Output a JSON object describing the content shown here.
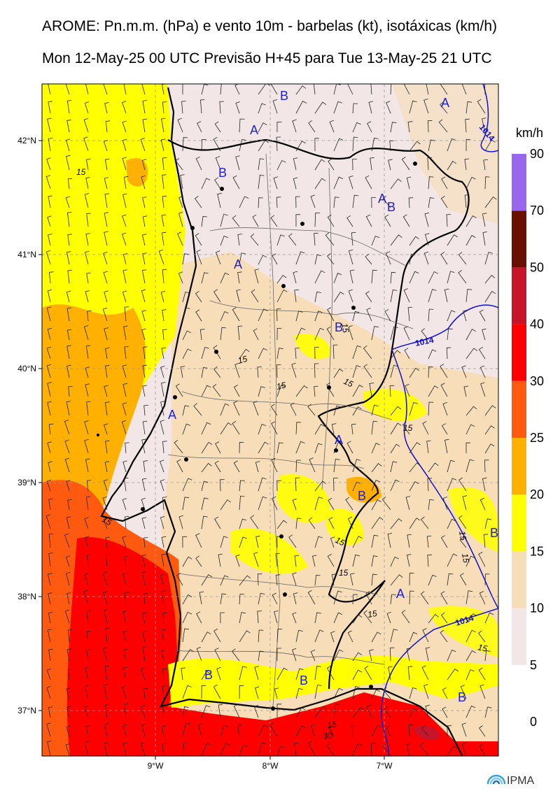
{
  "title_line1": "AROME: Pn.m.m. (hPa) e vento 10m - barbelas (kt), isotáxicas (km/h)",
  "title_line2": "Mon 12-May-25 00 UTC Previsão H+45 para Tue 13-May-25 21 UTC",
  "lat_labels": [
    "42°N",
    "41°N",
    "40°N",
    "39°N",
    "38°N",
    "37°N"
  ],
  "lon_labels": [
    "9°W",
    "8°W",
    "7°W"
  ],
  "colorbar": {
    "unit": "km/h",
    "levels": [
      "0",
      "5",
      "10",
      "15",
      "20",
      "25",
      "30",
      "40",
      "50",
      "70",
      "90"
    ],
    "colors": [
      "#ffffff",
      "#f3e6e6",
      "#f7ddb8",
      "#ffff00",
      "#ffb000",
      "#ff5a10",
      "#ff0000",
      "#c81428",
      "#6a1000",
      "#9966ee"
    ]
  },
  "pressure_centers": [
    {
      "label": "B",
      "name": "low-label-north"
    },
    {
      "label": "A",
      "name": "high-label-northeast"
    },
    {
      "label": "A",
      "name": "high-label-minho"
    },
    {
      "label": "B",
      "name": "low-label-minho"
    },
    {
      "label": "A",
      "name": "high-label-tras-os-montes"
    },
    {
      "label": "B",
      "name": "low-label-tras-os-montes"
    },
    {
      "label": "A",
      "name": "high-label-beira"
    },
    {
      "label": "B",
      "name": "low-label-beira-interior"
    },
    {
      "label": "A",
      "name": "high-label-west-coast"
    },
    {
      "label": "A",
      "name": "high-label-alto-alentejo"
    },
    {
      "label": "B",
      "name": "low-label-elvas"
    },
    {
      "label": "B",
      "name": "low-label-spain-east"
    },
    {
      "label": "A",
      "name": "high-label-baixo-alentejo"
    },
    {
      "label": "B",
      "name": "low-label-algarve-west"
    },
    {
      "label": "B",
      "name": "low-label-algarve-central"
    },
    {
      "label": "B",
      "name": "low-label-spain-south"
    }
  ],
  "isobar_labels": [
    "1014",
    "1014",
    "1014"
  ],
  "isotach_labels": [
    "15",
    "15",
    "15",
    "15",
    "15",
    "15",
    "15",
    "15",
    "15",
    "15",
    "15",
    "15",
    "15",
    "15",
    "30"
  ],
  "logo_text": "IPMA"
}
